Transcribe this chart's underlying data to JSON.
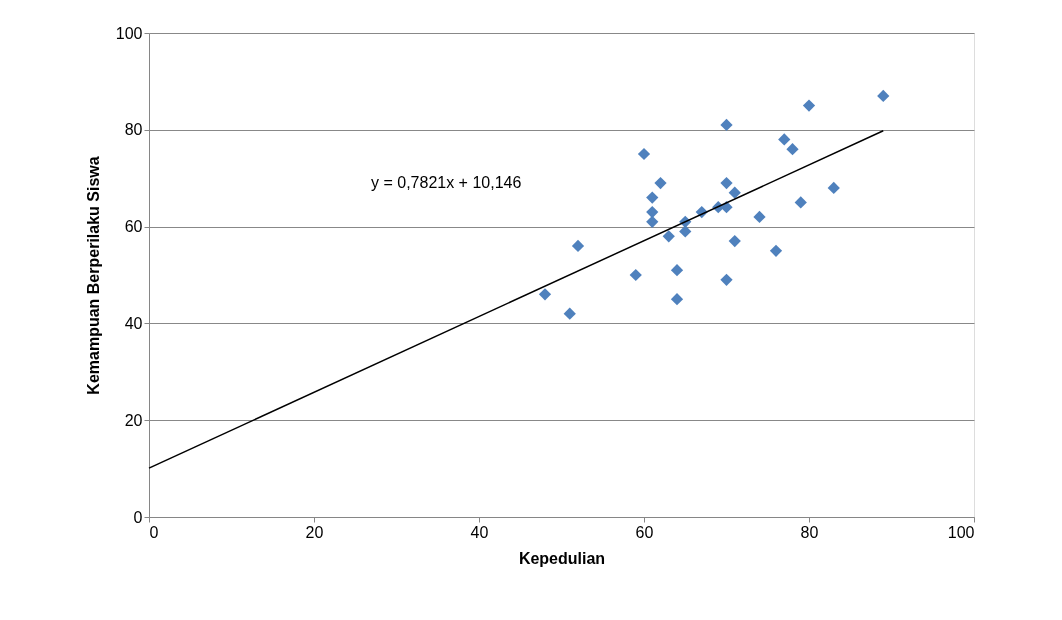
{
  "chart_data": {
    "type": "scatter",
    "xlabel": "Kepedulian",
    "ylabel": "Kemampuan Berperilaku Siswa",
    "xlim": [
      0,
      100
    ],
    "xticks": [
      0,
      20,
      40,
      60,
      80,
      100
    ],
    "ylim": [
      0,
      100
    ],
    "yticks": [
      0,
      20,
      40,
      60,
      80,
      100
    ],
    "grid": "y",
    "marker": "diamond",
    "annotations": [
      "y = 0,7821x + 10,146"
    ],
    "series": [
      {
        "color": "#4f81bd",
        "x": [
          48,
          51,
          52,
          59,
          60,
          61,
          61,
          61,
          62,
          63,
          64,
          64,
          65,
          65,
          67,
          69,
          70,
          70,
          70,
          71,
          71,
          70,
          74,
          76,
          77,
          78,
          79,
          80,
          83,
          89
        ],
        "values": [
          46,
          42,
          56,
          50,
          75,
          66,
          63,
          61,
          69,
          58,
          51,
          45,
          61,
          59,
          63,
          64,
          81,
          69,
          64,
          67,
          57,
          49,
          62,
          55,
          78,
          76,
          65,
          85,
          68,
          87
        ]
      },
      {
        "type": "line",
        "color": "#000000",
        "marker": "none",
        "line_style": "solid",
        "x": [
          0,
          89
        ],
        "values": [
          10.1,
          79.8
        ]
      }
    ]
  }
}
